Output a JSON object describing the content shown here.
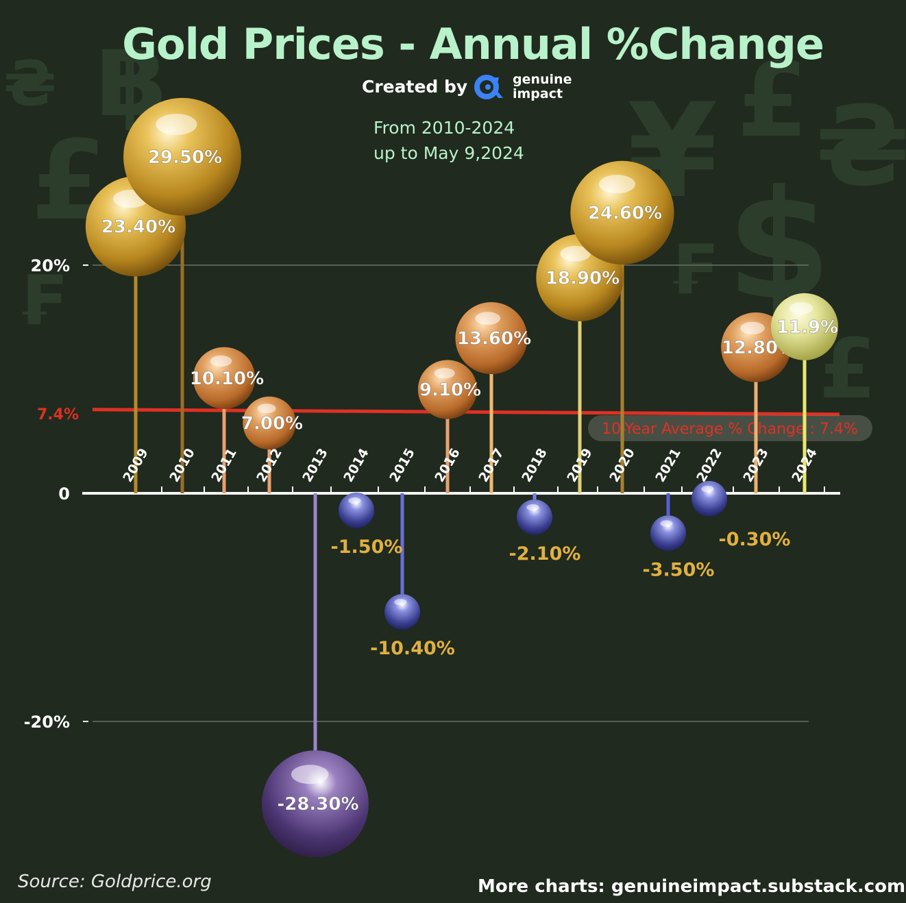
{
  "header": {
    "title": "Gold Prices - Annual %Change",
    "created_by": "Created by",
    "brand_line1": "genuine",
    "brand_line2": "impact",
    "subtitle_line1": "From 2010-2024",
    "subtitle_line2": "up to May 9,2024"
  },
  "footer": {
    "source": "Source: Goldprice.org",
    "more": "More charts: genuineimpact.substack.com"
  },
  "decorations": [
    "₴",
    "฿",
    "£",
    "₣",
    "¥",
    "£",
    "₴",
    "$",
    "₣",
    "£"
  ],
  "colors": {
    "background": "#202a1e",
    "title": "#b8f2cb",
    "average_line": "#e03024",
    "negative_label": "#e0b040",
    "brand": "#3b82f6"
  },
  "chart_data": {
    "type": "lollipop-bubble",
    "title": "Gold Prices - Annual %Change",
    "xlabel": "",
    "ylabel": "",
    "ylim": [
      -30,
      30
    ],
    "y_ticks": [
      {
        "value": 20,
        "label": "20%"
      },
      {
        "value": 0,
        "label": "0"
      },
      {
        "value": -20,
        "label": "-20%"
      }
    ],
    "grid": true,
    "categories": [
      "2009",
      "2010",
      "2011",
      "2012",
      "2013",
      "2014",
      "2015",
      "2016",
      "2017",
      "2018",
      "2019",
      "2020",
      "2021",
      "2022",
      "2023",
      "2024"
    ],
    "values": [
      23.4,
      29.5,
      10.1,
      7.0,
      -28.3,
      -1.5,
      -10.4,
      9.1,
      13.6,
      -2.1,
      18.9,
      24.6,
      -3.5,
      -0.3,
      12.8,
      11.9
    ],
    "data_labels": [
      "23.40%",
      "29.50%",
      "10.10%",
      "7.00%",
      "-28.30%",
      "-1.50%",
      "-10.40%",
      "9.10%",
      "13.60%",
      "-2.10%",
      "18.90%",
      "24.60%",
      "-3.50%",
      "-0.30%",
      "12.80%",
      "11.9%"
    ],
    "average": {
      "value": 7.4,
      "axis_label": "7.4%",
      "label": "10-Year Average % Change : 7.4%"
    }
  }
}
